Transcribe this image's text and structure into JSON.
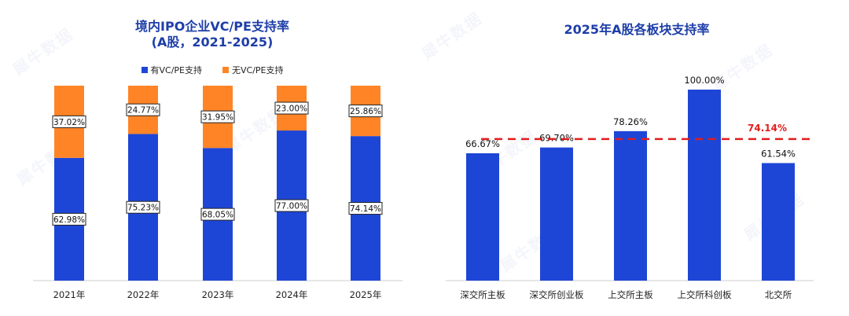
{
  "colors": {
    "blue": "#1e46d6",
    "orange": "#ff8426",
    "title": "#1e3ea8",
    "red": "#e11d1d"
  },
  "left": {
    "title_line1": "境内IPO企业VC/PE支持率",
    "title_line2": "(A股，2021-2025)",
    "legend": [
      "有VC/PE支持",
      "无VC/PE支持"
    ]
  },
  "right": {
    "title": "2025年A股各板块支持率"
  },
  "watermark_text": "犀牛数据",
  "chart_data": [
    {
      "type": "bar",
      "stacked": true,
      "title": "境内IPO企业VC/PE支持率 (A股，2021-2025)",
      "categories": [
        "2021年",
        "2022年",
        "2023年",
        "2024年",
        "2025年"
      ],
      "series": [
        {
          "name": "有VC/PE支持",
          "values": [
            62.98,
            75.23,
            68.05,
            77.0,
            74.14
          ],
          "labels": [
            "62.98%",
            "75.23%",
            "68.05%",
            "77.00%",
            "74.14%"
          ]
        },
        {
          "name": "无VC/PE支持",
          "values": [
            37.02,
            24.77,
            31.95,
            23.0,
            25.86
          ],
          "labels": [
            "37.02%",
            "24.77%",
            "31.95%",
            "23.00%",
            "25.86%"
          ]
        }
      ],
      "ylim": [
        0,
        100
      ],
      "legend": "top-center"
    },
    {
      "type": "bar",
      "title": "2025年A股各板块支持率",
      "categories": [
        "深交所主板",
        "深交所创业板",
        "上交所主板",
        "上交所科创板",
        "北交所"
      ],
      "values": [
        66.67,
        69.7,
        78.26,
        100.0,
        61.54
      ],
      "labels": [
        "66.67%",
        "69.70%",
        "78.26%",
        "100.00%",
        "61.54%"
      ],
      "reference_line": {
        "value": 74.14,
        "label": "74.14%",
        "style": "dashed"
      },
      "ylim": [
        0,
        100
      ]
    }
  ]
}
